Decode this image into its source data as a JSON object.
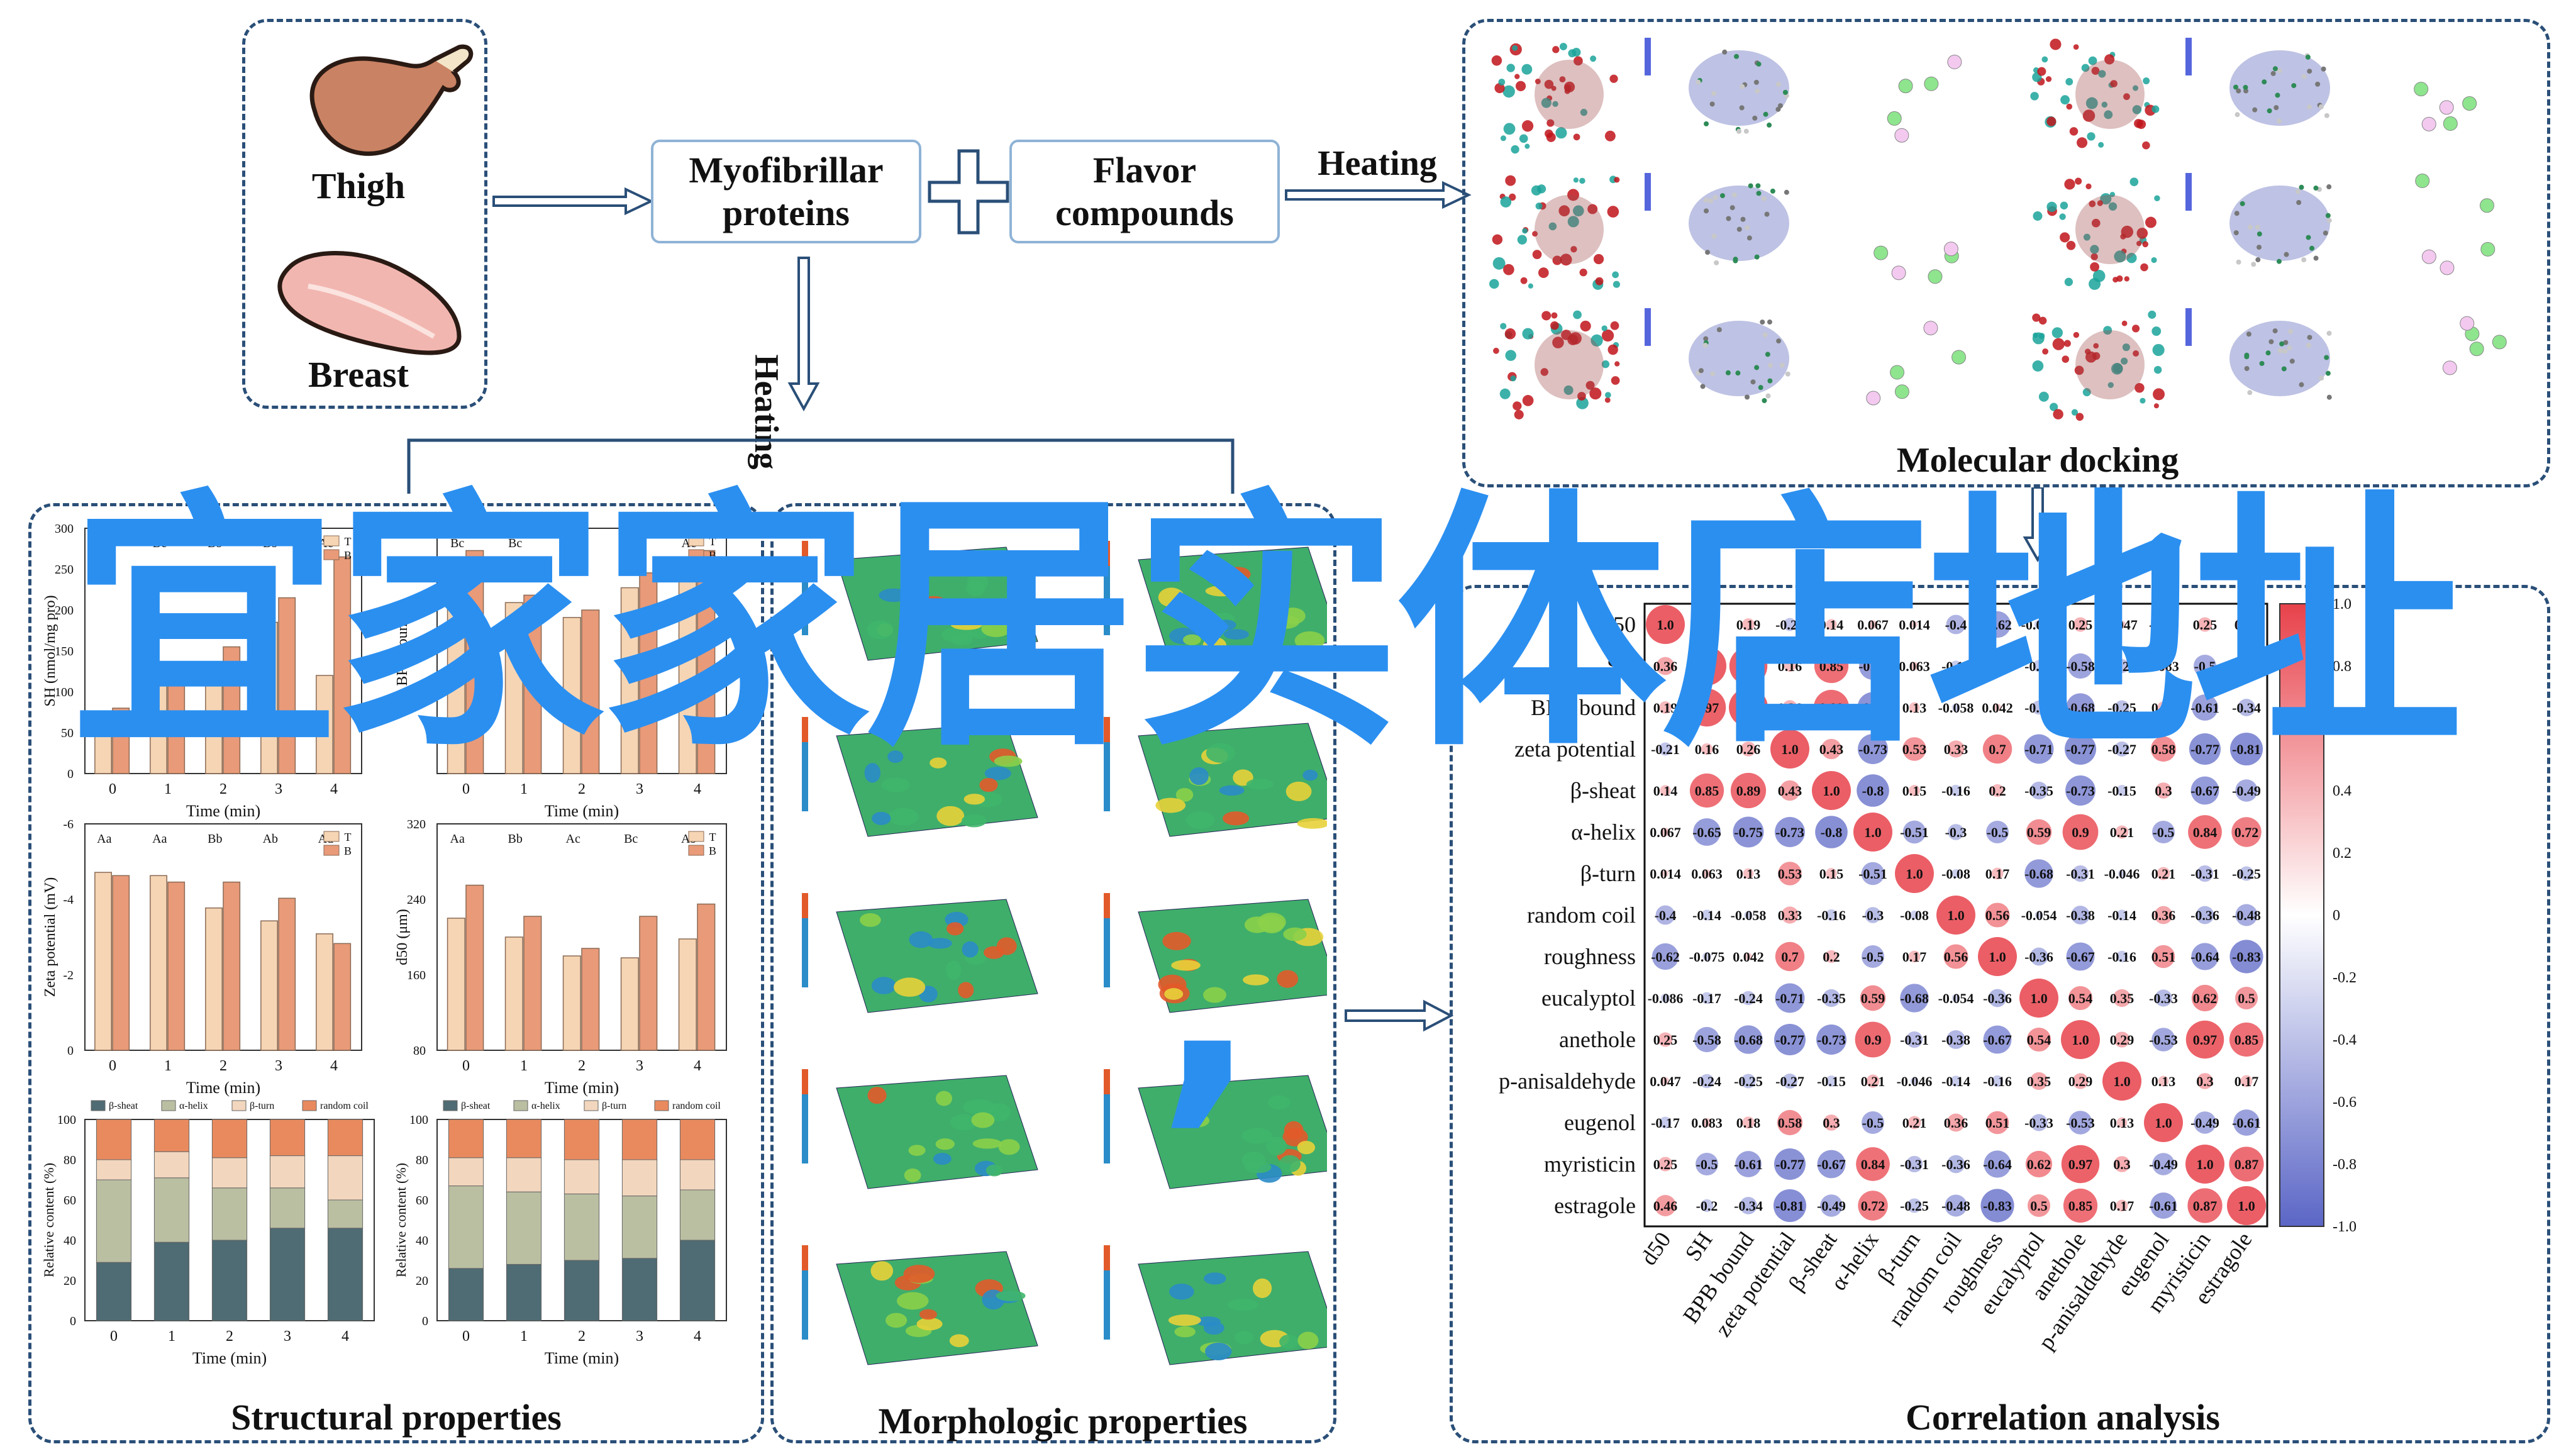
{
  "labels": {
    "thigh": "Thigh",
    "breast": "Breast",
    "myofibrillar": "Myofibrillar proteins",
    "flavor": "Flavor compounds",
    "heating_right": "Heating",
    "heating_down": "Heating",
    "molecular_docking": "Molecular docking",
    "structural": "Structural properties",
    "morphologic": "Morphologic properties",
    "correlation": "Correlation analysis"
  },
  "watermark": {
    "text": "宜家家居实体店地址",
    "comma": ","
  },
  "colors": {
    "frame": "#2a4f78",
    "accent": "#2b8ff0",
    "bar_T": "#f6d5b4",
    "bar_B": "#e99a78",
    "pos": "#e8424b",
    "neg": "#5b66c6"
  },
  "chart_data": [
    {
      "type": "bar",
      "panel": "SH",
      "ylabel": "SH (nmol/mg pro)",
      "xlabel": "Time (min)",
      "categories": [
        "0",
        "1",
        "2",
        "3",
        "4"
      ],
      "series": [
        {
          "name": "T",
          "values": [
            70,
            110,
            125,
            185,
            120
          ]
        },
        {
          "name": "B",
          "values": [
            80,
            130,
            155,
            215,
            265
          ]
        }
      ],
      "letters": [
        "Bd",
        "Bc",
        "Bb",
        "Bb",
        "Ac"
      ],
      "ylim": [
        0,
        300
      ],
      "yticks": [
        "0",
        "50",
        "100",
        "150",
        "200",
        "250",
        "300"
      ]
    },
    {
      "type": "bar",
      "panel": "BPB",
      "ylabel": "BPB bound",
      "xlabel": "Time (min)",
      "categories": [
        "0",
        "1",
        "2",
        "3",
        "4"
      ],
      "series": [
        {
          "name": "T",
          "values": [
            27,
            23,
            21,
            25,
            29
          ]
        },
        {
          "name": "B",
          "values": [
            30,
            24,
            22,
            27,
            30
          ]
        }
      ],
      "letters": [
        "Bc",
        "Bc",
        "Ac",
        "Ab",
        "Ac"
      ],
      "ylim": [
        0,
        33
      ]
    },
    {
      "type": "bar",
      "panel": "Zeta",
      "ylabel": "Zeta potential (mV)",
      "xlabel": "Time (min)",
      "categories": [
        "0",
        "1",
        "2",
        "3",
        "4"
      ],
      "series": [
        {
          "name": "T",
          "values": [
            -5.5,
            -5.4,
            -4.4,
            -4.0,
            -3.6
          ]
        },
        {
          "name": "B",
          "values": [
            -5.4,
            -5.2,
            -5.2,
            -4.7,
            -3.3
          ]
        }
      ],
      "letters": [
        "Aa",
        "Aa",
        "Bb",
        "Ab",
        "Ad"
      ],
      "ylim": [
        0,
        -7
      ],
      "yticks": [
        "0",
        "-2",
        "-4",
        "-6"
      ]
    },
    {
      "type": "bar",
      "panel": "d50",
      "ylabel": "d50 (μm)",
      "xlabel": "Time (min)",
      "categories": [
        "0",
        "1",
        "2",
        "3",
        "4"
      ],
      "series": [
        {
          "name": "T",
          "values": [
            220,
            200,
            180,
            178,
            198
          ]
        },
        {
          "name": "B",
          "values": [
            255,
            222,
            188,
            222,
            235
          ]
        }
      ],
      "letters": [
        "Aa",
        "Bb",
        "Ac",
        "Bc",
        "Ab"
      ],
      "ylim": [
        80,
        320
      ],
      "yticks": [
        "80",
        "160",
        "240",
        "320"
      ]
    },
    {
      "type": "bar",
      "panel": "secondary-T",
      "stacked": true,
      "ylabel": "Relative content (%)",
      "xlabel": "Time (min)",
      "categories": [
        "0",
        "1",
        "2",
        "3",
        "4"
      ],
      "series": [
        {
          "name": "β-sheat",
          "values": [
            29,
            39,
            40,
            46,
            46
          ]
        },
        {
          "name": "α-helix",
          "values": [
            41,
            32,
            26,
            20,
            14
          ]
        },
        {
          "name": "β-turn",
          "values": [
            10,
            13,
            15,
            16,
            22
          ]
        },
        {
          "name": "random coil",
          "values": [
            20,
            16,
            19,
            18,
            18
          ]
        }
      ],
      "ylim": [
        0,
        100
      ],
      "yticks": [
        "0",
        "20",
        "40",
        "60",
        "80",
        "100"
      ]
    },
    {
      "type": "bar",
      "panel": "secondary-B",
      "stacked": true,
      "ylabel": "Relative content (%)",
      "xlabel": "Time (min)",
      "categories": [
        "0",
        "1",
        "2",
        "3",
        "4"
      ],
      "series": [
        {
          "name": "β-sheat",
          "values": [
            26,
            28,
            30,
            31,
            40
          ]
        },
        {
          "name": "α-helix",
          "values": [
            41,
            36,
            33,
            31,
            25
          ]
        },
        {
          "name": "β-turn",
          "values": [
            14,
            17,
            17,
            18,
            15
          ]
        },
        {
          "name": "random coil",
          "values": [
            19,
            19,
            20,
            20,
            20
          ]
        }
      ],
      "ylim": [
        0,
        100
      ],
      "yticks": [
        "0",
        "20",
        "40",
        "60",
        "80",
        "100"
      ]
    },
    {
      "type": "heatmap",
      "panel": "correlation",
      "variables": [
        "d50",
        "SH",
        "BPB bound",
        "zeta potential",
        "β-sheat",
        "α-helix",
        "β-turn",
        "random coil",
        "roughness",
        "eucalyptol",
        "anethole",
        "p-anisaldehyde",
        "eugenol",
        "myristicin",
        "estragole"
      ],
      "matrix": [
        [
          1.0,
          0.36,
          0.19,
          -0.21,
          0.14,
          0.067,
          0.014,
          -0.4,
          -0.62,
          -0.086,
          0.25,
          0.047,
          -0.17,
          0.25,
          0.46
        ],
        [
          0.36,
          1.0,
          0.97,
          0.16,
          0.85,
          -0.65,
          0.063,
          -0.14,
          -0.075,
          -0.17,
          -0.58,
          -0.24,
          0.083,
          -0.5,
          -0.2
        ],
        [
          0.19,
          0.97,
          1.0,
          0.26,
          0.89,
          -0.75,
          0.13,
          -0.058,
          0.042,
          -0.24,
          -0.68,
          -0.25,
          0.18,
          -0.61,
          -0.34
        ],
        [
          -0.21,
          0.16,
          0.26,
          1.0,
          0.43,
          -0.73,
          0.53,
          0.33,
          0.7,
          -0.71,
          -0.77,
          -0.27,
          0.58,
          -0.77,
          -0.81
        ],
        [
          0.14,
          0.85,
          0.89,
          0.43,
          1.0,
          -0.8,
          0.15,
          -0.16,
          0.2,
          -0.35,
          -0.73,
          -0.15,
          0.3,
          -0.67,
          -0.49
        ],
        [
          0.067,
          -0.65,
          -0.75,
          -0.73,
          -0.8,
          1.0,
          -0.51,
          -0.3,
          -0.5,
          0.59,
          0.9,
          0.21,
          -0.5,
          0.84,
          0.72
        ],
        [
          0.014,
          0.063,
          0.13,
          0.53,
          0.15,
          -0.51,
          1.0,
          -0.08,
          0.17,
          -0.68,
          -0.31,
          -0.046,
          0.21,
          -0.31,
          -0.25
        ],
        [
          -0.4,
          -0.14,
          -0.058,
          0.33,
          -0.16,
          -0.3,
          -0.08,
          1.0,
          0.56,
          -0.054,
          -0.38,
          -0.14,
          0.36,
          -0.36,
          -0.48
        ],
        [
          -0.62,
          -0.075,
          0.042,
          0.7,
          0.2,
          -0.5,
          0.17,
          0.56,
          1.0,
          -0.36,
          -0.67,
          -0.16,
          0.51,
          -0.64,
          -0.83
        ],
        [
          -0.086,
          -0.17,
          -0.24,
          -0.71,
          -0.35,
          0.59,
          -0.68,
          -0.054,
          -0.36,
          1.0,
          0.54,
          0.35,
          -0.33,
          0.62,
          0.5
        ],
        [
          0.25,
          -0.58,
          -0.68,
          -0.77,
          -0.73,
          0.9,
          -0.31,
          -0.38,
          -0.67,
          0.54,
          1.0,
          0.29,
          -0.53,
          0.97,
          0.85
        ],
        [
          0.047,
          -0.24,
          -0.25,
          -0.27,
          -0.15,
          0.21,
          -0.046,
          -0.14,
          -0.16,
          0.35,
          0.29,
          1.0,
          0.13,
          0.3,
          0.17
        ],
        [
          -0.17,
          0.083,
          0.18,
          0.58,
          0.3,
          -0.5,
          0.21,
          0.36,
          0.51,
          -0.33,
          -0.53,
          0.13,
          1.0,
          -0.49,
          -0.61
        ],
        [
          0.25,
          -0.5,
          -0.61,
          -0.77,
          -0.67,
          0.84,
          -0.31,
          -0.36,
          -0.64,
          0.62,
          0.97,
          0.3,
          -0.49,
          1.0,
          0.87
        ],
        [
          0.46,
          -0.2,
          -0.34,
          -0.81,
          -0.49,
          0.72,
          -0.25,
          -0.48,
          -0.83,
          0.5,
          0.85,
          0.17,
          -0.61,
          0.87,
          1.0
        ]
      ],
      "colorbar_ticks": [
        "1.0",
        "0.8",
        "0.6",
        "0.4",
        "0.2",
        "0",
        "-0.2",
        "-0.4",
        "-0.6",
        "-0.8",
        "-1.0"
      ]
    }
  ]
}
